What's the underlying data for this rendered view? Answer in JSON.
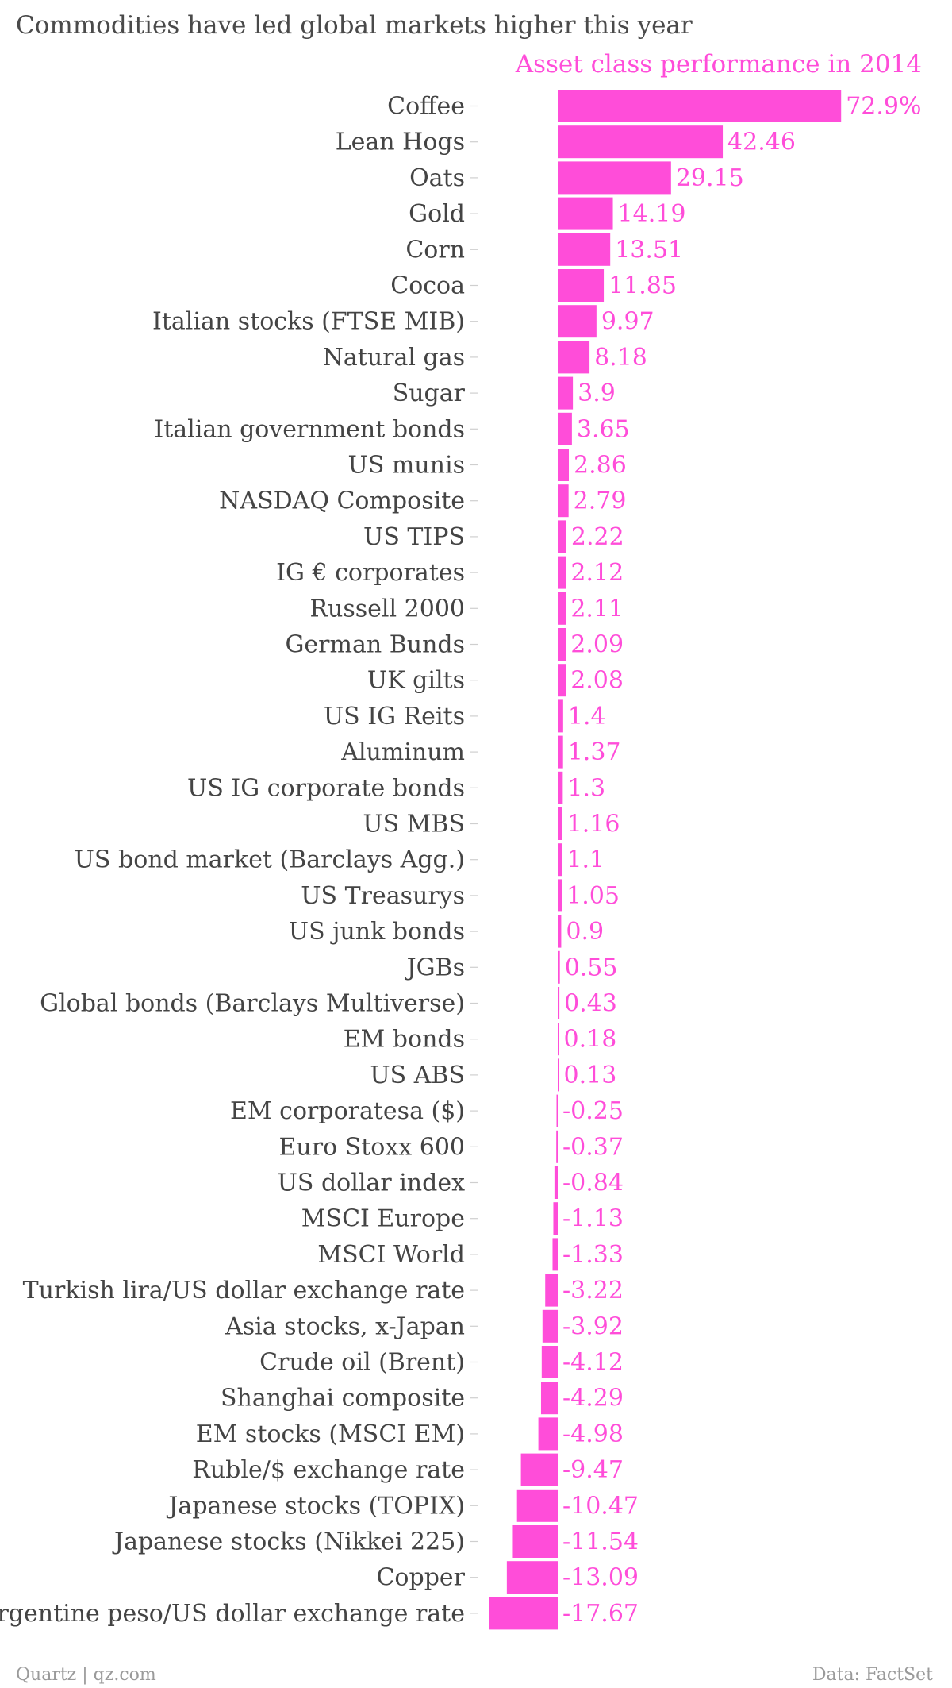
{
  "chart_data": {
    "type": "bar",
    "orientation": "horizontal",
    "title": "Commodities have led global markets higher this year",
    "subtitle": "Asset class performance in 2014",
    "source_left": "Quartz | qz.com",
    "source_right": "Data: FactSet",
    "bar_color": "#ff4dd9",
    "value_suffix_first": "%",
    "xlim": [
      -17.67,
      72.9
    ],
    "categories": [
      "Coffee",
      "Lean Hogs",
      "Oats",
      "Gold",
      "Corn",
      "Cocoa",
      "Italian stocks (FTSE MIB)",
      "Natural gas",
      "Sugar",
      "Italian government bonds",
      "US munis",
      "NASDAQ Composite",
      "US TIPS",
      "IG € corporates",
      "Russell 2000",
      "German Bunds",
      "UK gilts",
      "US IG Reits",
      "Aluminum",
      "US IG corporate bonds",
      "US MBS",
      "US bond market (Barclays Agg.)",
      "US Treasurys",
      "US junk bonds",
      "JGBs",
      "Global bonds (Barclays Multiverse)",
      "EM bonds",
      "US ABS",
      "EM corporatesa ($)",
      "Euro Stoxx 600",
      "US dollar index",
      "MSCI Europe",
      "MSCI World",
      "Turkish lira/US dollar exchange rate",
      "Asia stocks, x-Japan",
      "Crude oil (Brent)",
      "Shanghai composite",
      "EM stocks (MSCI EM)",
      "Ruble/$ exchange rate",
      "Japanese stocks (TOPIX)",
      "Japanese stocks (Nikkei 225)",
      "Copper",
      "Argentine peso/US dollar exchange rate"
    ],
    "values": [
      72.9,
      42.46,
      29.15,
      14.19,
      13.51,
      11.85,
      9.97,
      8.18,
      3.9,
      3.65,
      2.86,
      2.79,
      2.22,
      2.12,
      2.11,
      2.09,
      2.08,
      1.4,
      1.37,
      1.3,
      1.16,
      1.1,
      1.05,
      0.9,
      0.55,
      0.43,
      0.18,
      0.13,
      -0.25,
      -0.37,
      -0.84,
      -1.13,
      -1.33,
      -3.22,
      -3.92,
      -4.12,
      -4.29,
      -4.98,
      -9.47,
      -10.47,
      -11.54,
      -13.09,
      -17.67
    ],
    "value_labels": [
      "72.9%",
      "42.46",
      "29.15",
      "14.19",
      "13.51",
      "11.85",
      "9.97",
      "8.18",
      "3.9",
      "3.65",
      "2.86",
      "2.79",
      "2.22",
      "2.12",
      "2.11",
      "2.09",
      "2.08",
      "1.4",
      "1.37",
      "1.3",
      "1.16",
      "1.1",
      "1.05",
      "0.9",
      "0.55",
      "0.43",
      "0.18",
      "0.13",
      "-0.25",
      "-0.37",
      "-0.84",
      "-1.13",
      "-1.33",
      "-3.22",
      "-3.92",
      "-4.12",
      "-4.29",
      "-4.98",
      "-9.47",
      "-10.47",
      "-11.54",
      "-13.09",
      "-17.67"
    ]
  }
}
